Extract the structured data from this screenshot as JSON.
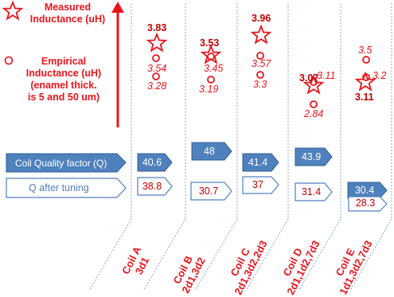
{
  "legend": {
    "measured_label": "Measured Inductance (uH)",
    "empirical_label_1": "Empirical",
    "empirical_label_2": "Inductance (uH)",
    "empirical_label_3": "(enamel thick.",
    "empirical_label_4": "is 5 and 50 um)",
    "measured_icon": "star-icon",
    "empirical_icon": "circle-icon"
  },
  "row_labels": {
    "quality_factor": "Coil Quality factor  (Q)",
    "after_tuning": "Q after tuning"
  },
  "colors": {
    "accent_red": "#e8141b",
    "box_blue": "#4f81bd",
    "box_border": "#2e6da4"
  },
  "coils": [
    {
      "name": "Coil A",
      "config": "3d1",
      "measured": "3.83",
      "empirical": [
        "3.54",
        "3.28"
      ],
      "q": "40.6",
      "q_tuned": "38.8"
    },
    {
      "name": "Coil B",
      "config": "2d1,3d2",
      "measured": "3.53",
      "empirical": [
        "3.45",
        "3.19"
      ],
      "q": "48",
      "q_tuned": "30.7"
    },
    {
      "name": "Coil C",
      "config": "2d1,3d2,2d3",
      "measured": "3.96",
      "empirical": [
        "3.57",
        "3.3"
      ],
      "q": "41.4",
      "q_tuned": "37"
    },
    {
      "name": "Coil D",
      "config": "2d1,1d2,7d3",
      "measured": "3.07",
      "empirical": [
        "3.11",
        "2.84"
      ],
      "q": "43.9",
      "q_tuned": "31.4"
    },
    {
      "name": "Coil E",
      "config": "1d1,3d2,7d3",
      "measured": "3.11",
      "empirical": [
        "3.5",
        "3.2"
      ],
      "q": "30.4",
      "q_tuned": "28.3"
    }
  ]
}
